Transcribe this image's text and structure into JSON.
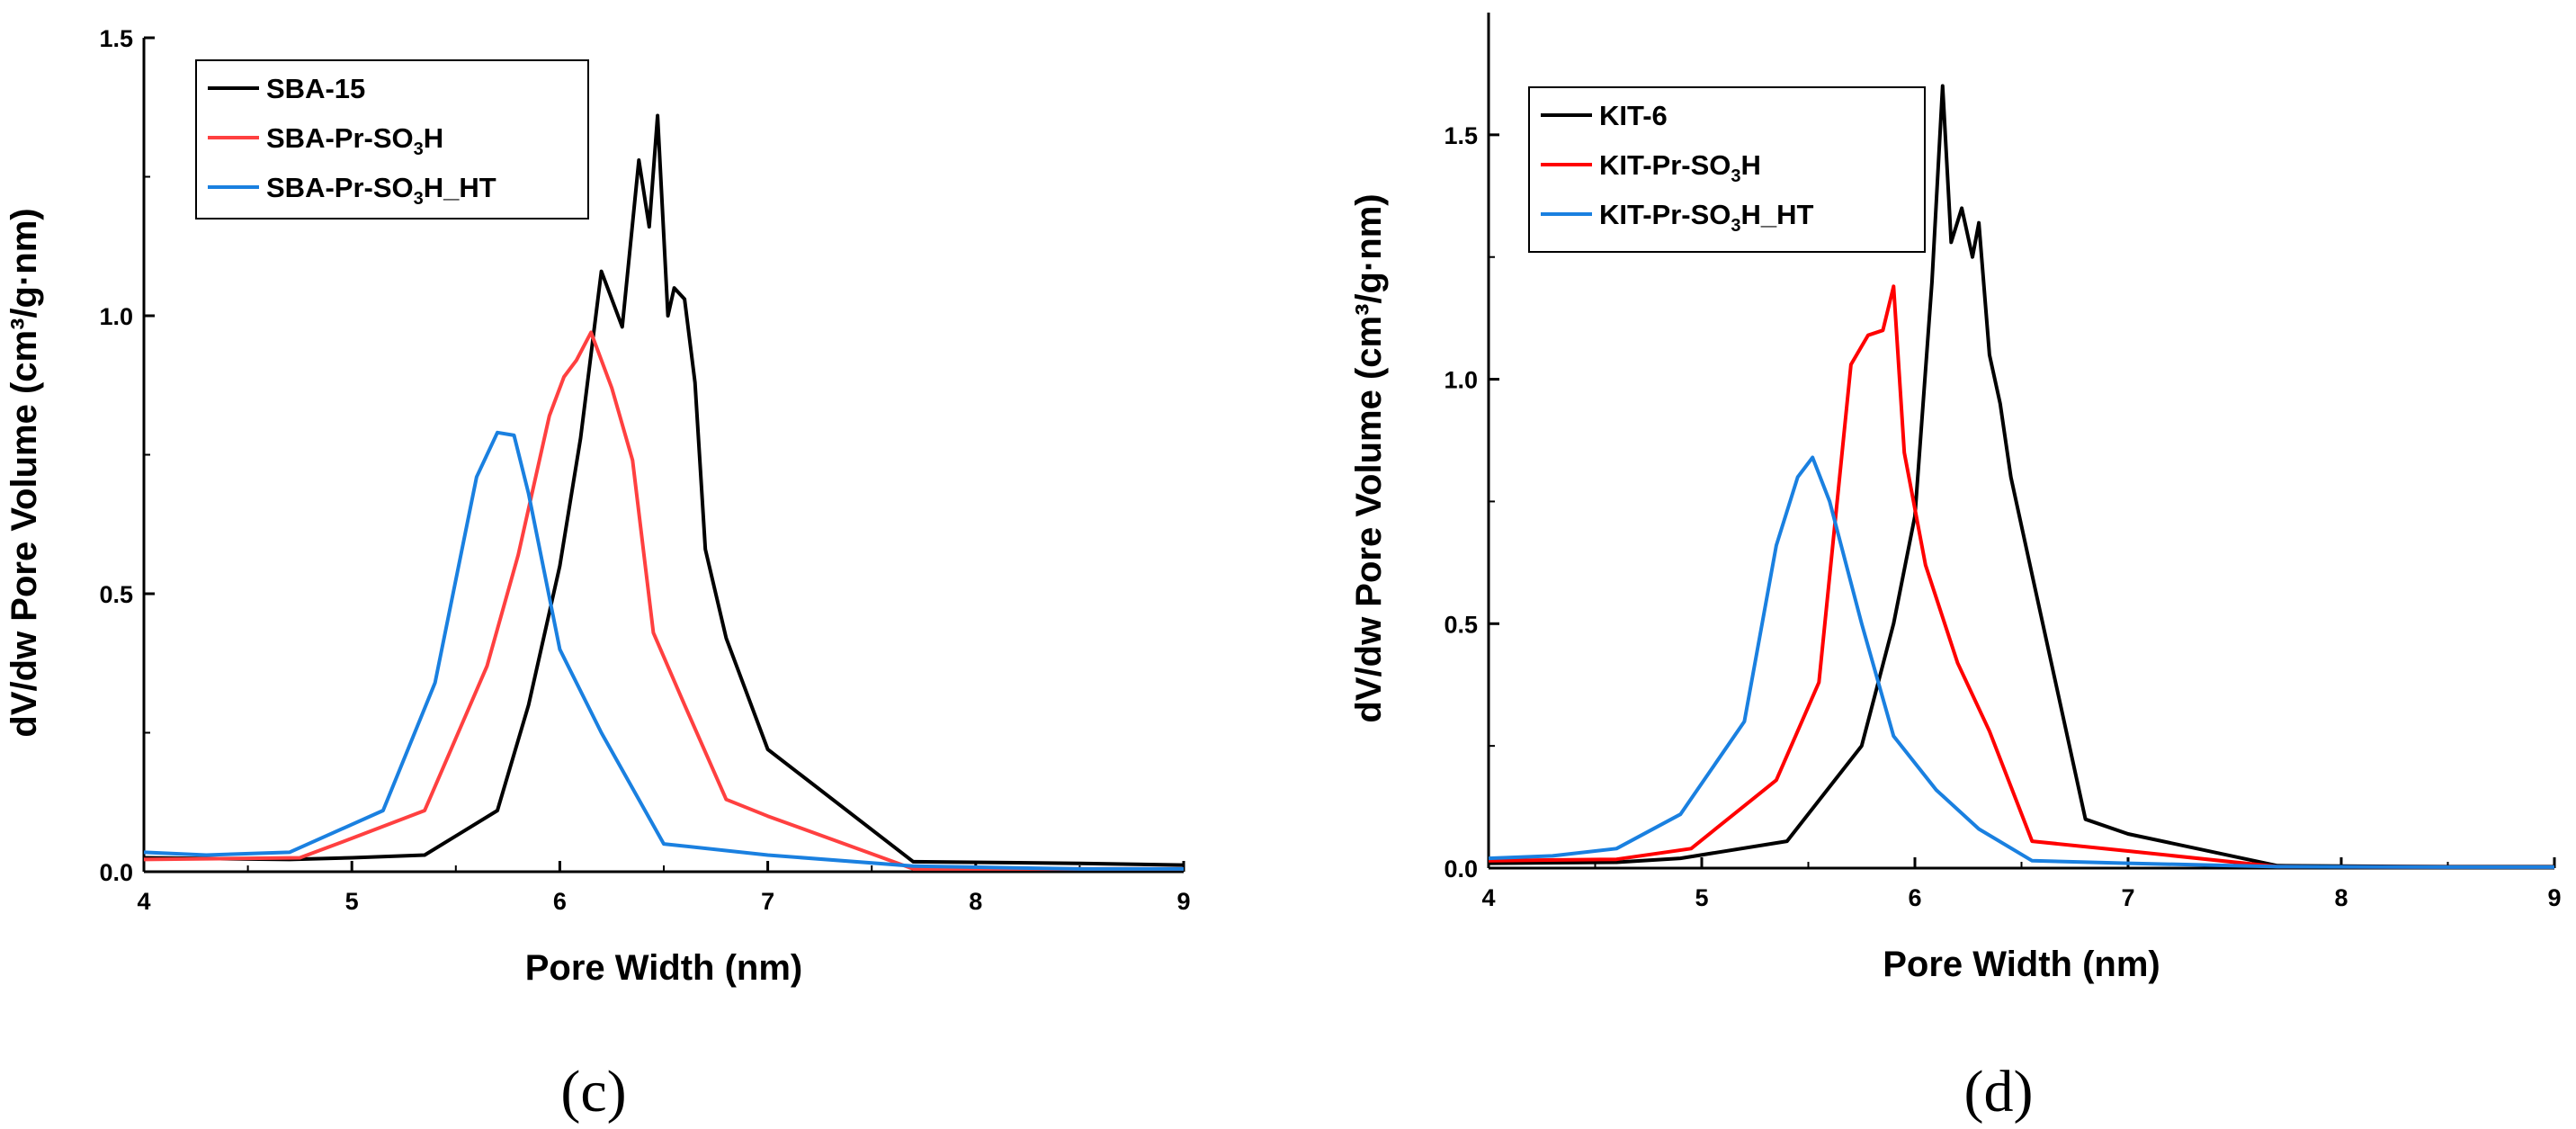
{
  "chart_data": [
    {
      "type": "line",
      "panel_label": "(c)",
      "title": "",
      "xlabel": "Pore Width (nm)",
      "ylabel": "dV/dw Pore Volume (cm³/g·nm)",
      "xlim": [
        4,
        9
      ],
      "ylim": [
        0,
        1.5
      ],
      "xticks": [
        4,
        5,
        6,
        7,
        8,
        9
      ],
      "yticks": [
        0.0,
        0.5,
        1.0,
        1.5
      ],
      "ytick_labels": [
        "0.0",
        "0.5",
        "1.0",
        "1.5"
      ],
      "legend_position": "top-left",
      "series": [
        {
          "name": "SBA-15",
          "legend": {
            "pre": "SBA-15",
            "sub": "",
            "post": ""
          },
          "color": "#000000",
          "x": [
            4.0,
            4.7,
            5.0,
            5.35,
            5.7,
            5.85,
            6.0,
            6.1,
            6.2,
            6.3,
            6.38,
            6.43,
            6.47,
            6.52,
            6.55,
            6.6,
            6.65,
            6.7,
            6.8,
            7.0,
            7.7,
            8.5,
            9.0
          ],
          "y": [
            0.025,
            0.022,
            0.025,
            0.03,
            0.11,
            0.3,
            0.55,
            0.78,
            1.08,
            0.98,
            1.28,
            1.16,
            1.36,
            1.0,
            1.05,
            1.03,
            0.88,
            0.58,
            0.42,
            0.22,
            0.018,
            0.015,
            0.012
          ]
        },
        {
          "name": "SBA-Pr-SO3H",
          "legend": {
            "pre": "SBA-Pr-SO",
            "sub": "3",
            "post": "H"
          },
          "color": "#ff4040",
          "x": [
            4.0,
            4.75,
            5.0,
            5.35,
            5.65,
            5.8,
            5.95,
            6.02,
            6.08,
            6.15,
            6.25,
            6.35,
            6.45,
            6.6,
            6.8,
            7.0,
            7.7,
            8.5,
            9.0
          ],
          "y": [
            0.022,
            0.025,
            0.06,
            0.11,
            0.37,
            0.57,
            0.82,
            0.89,
            0.92,
            0.97,
            0.87,
            0.74,
            0.43,
            0.3,
            0.13,
            0.1,
            0.005,
            0.005,
            0.005
          ]
        },
        {
          "name": "SBA-Pr-SO3H_HT",
          "legend": {
            "pre": "SBA-Pr-SO",
            "sub": "3",
            "post": "H_HT"
          },
          "color": "#1a80e0",
          "x": [
            4.0,
            4.3,
            4.7,
            5.15,
            5.4,
            5.6,
            5.7,
            5.78,
            5.85,
            6.0,
            6.2,
            6.5,
            7.0,
            7.7,
            8.5,
            9.0
          ],
          "y": [
            0.035,
            0.03,
            0.035,
            0.11,
            0.34,
            0.71,
            0.79,
            0.785,
            0.68,
            0.4,
            0.25,
            0.05,
            0.03,
            0.01,
            0.005,
            0.005
          ]
        }
      ]
    },
    {
      "type": "line",
      "panel_label": "(d)",
      "title": "",
      "xlabel": "Pore Width (nm)",
      "ylabel": "dV/dw Pore Volume (cm³/g·nm)",
      "xlim": [
        4,
        9
      ],
      "ylim": [
        0,
        1.75
      ],
      "xticks": [
        4,
        5,
        6,
        7,
        8,
        9
      ],
      "yticks": [
        0.0,
        0.5,
        1.0,
        1.5
      ],
      "ytick_labels": [
        "0.0",
        "0.5",
        "1.0",
        "1.5"
      ],
      "legend_position": "top-left",
      "series": [
        {
          "name": "KIT-6",
          "legend": {
            "pre": "KIT-6",
            "sub": "",
            "post": ""
          },
          "color": "#000000",
          "x": [
            4.0,
            4.6,
            4.9,
            5.4,
            5.75,
            5.9,
            6.0,
            6.08,
            6.13,
            6.17,
            6.22,
            6.27,
            6.3,
            6.35,
            6.4,
            6.45,
            6.55,
            6.8,
            7.0,
            7.7,
            8.5,
            9.0
          ],
          "y": [
            0.01,
            0.012,
            0.02,
            0.055,
            0.25,
            0.5,
            0.72,
            1.2,
            1.6,
            1.28,
            1.35,
            1.25,
            1.32,
            1.05,
            0.95,
            0.8,
            0.6,
            0.1,
            0.07,
            0.005,
            0.003,
            0.003
          ]
        },
        {
          "name": "KIT-Pr-SO3H",
          "legend": {
            "pre": "KIT-Pr-SO",
            "sub": "3",
            "post": "H"
          },
          "color": "#ff0000",
          "x": [
            4.0,
            4.6,
            4.95,
            5.35,
            5.55,
            5.7,
            5.78,
            5.85,
            5.9,
            5.95,
            6.05,
            6.2,
            6.35,
            6.55,
            7.0,
            7.7,
            8.5,
            9.0
          ],
          "y": [
            0.015,
            0.018,
            0.04,
            0.18,
            0.38,
            1.03,
            1.09,
            1.1,
            1.19,
            0.85,
            0.62,
            0.42,
            0.28,
            0.055,
            0.035,
            0.003,
            0.002,
            0.002
          ]
        },
        {
          "name": "KIT-Pr-SO3H_HT",
          "legend": {
            "pre": "KIT-Pr-SO",
            "sub": "3",
            "post": "H_HT"
          },
          "color": "#1a80e0",
          "x": [
            4.0,
            4.3,
            4.6,
            4.9,
            5.2,
            5.35,
            5.45,
            5.52,
            5.6,
            5.75,
            5.9,
            6.1,
            6.3,
            6.55,
            7.0,
            7.7,
            8.5,
            9.0
          ],
          "y": [
            0.02,
            0.025,
            0.04,
            0.11,
            0.3,
            0.66,
            0.8,
            0.84,
            0.75,
            0.5,
            0.27,
            0.16,
            0.08,
            0.015,
            0.01,
            0.003,
            0.002,
            0.002
          ]
        }
      ]
    }
  ]
}
